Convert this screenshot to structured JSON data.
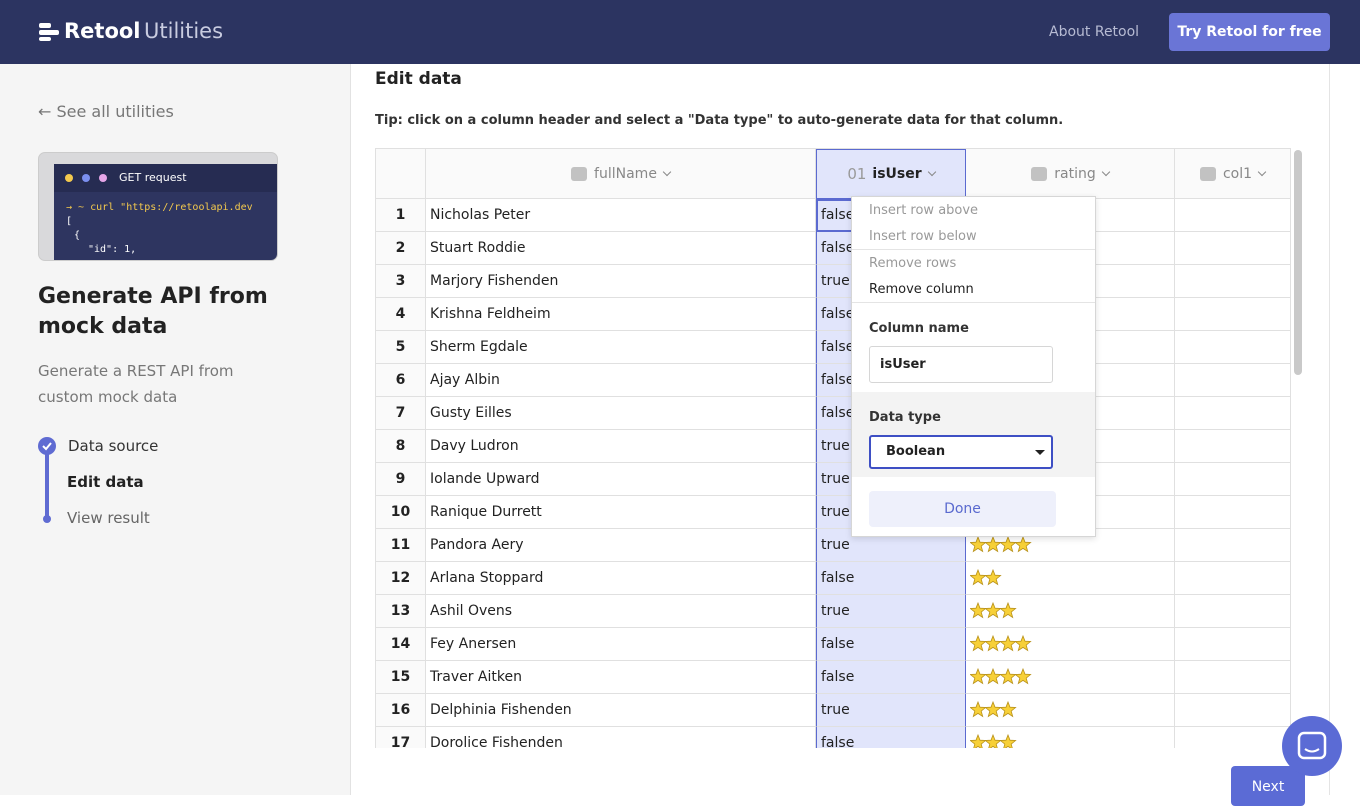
{
  "header": {
    "brand": "Retool",
    "product": "Utilities",
    "nav": "About Retool",
    "cta": "Try Retool for free"
  },
  "sidebar": {
    "back": "See all utilities",
    "preview": {
      "label": "GET request",
      "code": [
        "→ ~ curl \"https://retoolapi.dev",
        "[",
        "{",
        "\"id\": 1,"
      ]
    },
    "title": "Generate API from mock data",
    "description": "Generate a REST API from custom mock data",
    "steps": [
      "Data source",
      "Edit data",
      "View result"
    ]
  },
  "main": {
    "heading": "Edit data",
    "tip": "Tip: click on a column header and select a \"Data type\" to auto-generate data for that column.",
    "table": {
      "columns": [
        {
          "name": "fullName"
        },
        {
          "icon_text": "01",
          "name": "isUser"
        },
        {
          "name": "rating"
        },
        {
          "name": "col1"
        }
      ],
      "rows": [
        [
          1,
          "Nicholas Peter",
          "false",
          null
        ],
        [
          2,
          "Stuart Roddie",
          "false",
          null
        ],
        [
          3,
          "Marjory Fishenden",
          "true",
          null
        ],
        [
          4,
          "Krishna Feldheim",
          "false",
          null
        ],
        [
          5,
          "Sherm Egdale",
          "false",
          null
        ],
        [
          6,
          "Ajay Albin",
          "false",
          null
        ],
        [
          7,
          "Gusty Eilles",
          "false",
          null
        ],
        [
          8,
          "Davy Ludron",
          "true",
          null
        ],
        [
          9,
          "Iolande Upward",
          "true",
          null
        ],
        [
          10,
          "Ranique Durrett",
          "true",
          null
        ],
        [
          11,
          "Pandora Aery",
          "true",
          4
        ],
        [
          12,
          "Arlana Stoppard",
          "false",
          2
        ],
        [
          13,
          "Ashil Ovens",
          "true",
          3
        ],
        [
          14,
          "Fey Anersen",
          "false",
          4
        ],
        [
          15,
          "Traver Aitken",
          "false",
          4
        ],
        [
          16,
          "Delphinia Fishenden",
          "true",
          3
        ],
        [
          17,
          "Dorolice Fishenden",
          "false",
          3
        ]
      ]
    },
    "menu": {
      "items": [
        "Insert row above",
        "Insert row below",
        "Remove rows",
        "Remove column"
      ],
      "column_name_label": "Column name",
      "column_name": "isUser",
      "data_type_label": "Data type",
      "data_type": "Boolean",
      "done": "Done"
    },
    "next": "Next"
  }
}
